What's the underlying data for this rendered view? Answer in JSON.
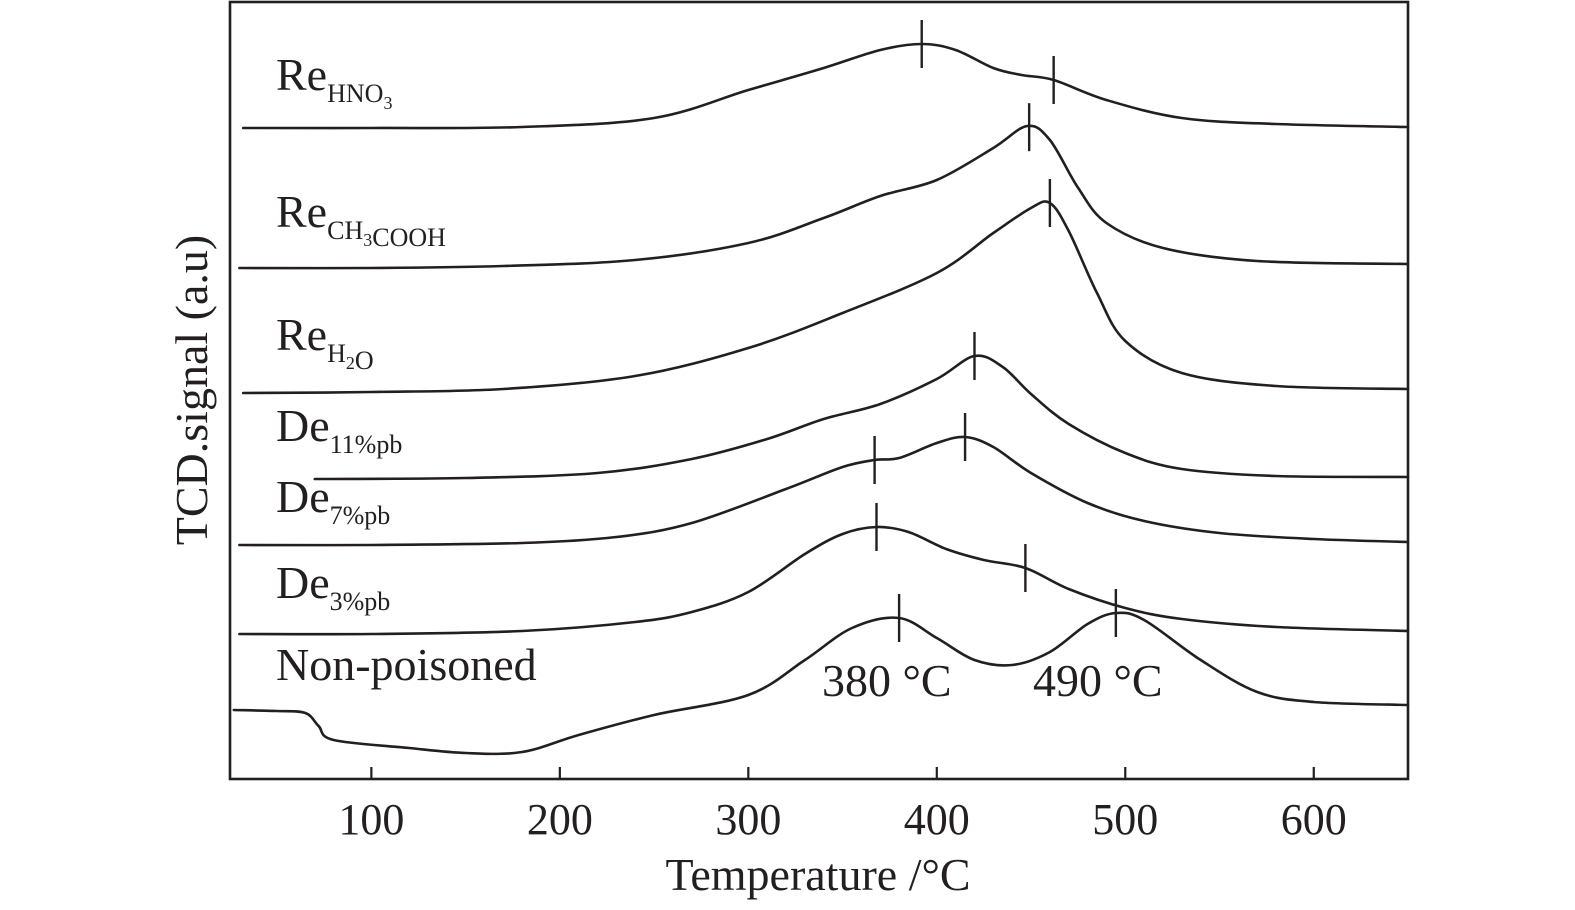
{
  "chart_data": {
    "type": "line",
    "title": "",
    "xlabel": "Temperature /°C",
    "ylabel": "TCD.signal (a.u)",
    "xlim": [
      25,
      650
    ],
    "xticks": [
      100,
      200,
      300,
      400,
      500,
      600
    ],
    "ytick_labels": false,
    "grid": false,
    "legend": "none",
    "stacked_offset": true,
    "series": [
      {
        "name": "Re",
        "subscript": "HNO3",
        "points": [
          [
            32,
            0.02
          ],
          [
            100,
            0.02
          ],
          [
            180,
            0.03
          ],
          [
            250,
            0.12
          ],
          [
            300,
            0.4
          ],
          [
            340,
            0.62
          ],
          [
            370,
            0.8
          ],
          [
            392,
            0.86
          ],
          [
            410,
            0.8
          ],
          [
            430,
            0.62
          ],
          [
            445,
            0.55
          ],
          [
            462,
            0.5
          ],
          [
            490,
            0.3
          ],
          [
            530,
            0.12
          ],
          [
            580,
            0.06
          ],
          [
            650,
            0.03
          ]
        ],
        "peak_markers": [
          392,
          462
        ]
      },
      {
        "name": "Re",
        "subscript": "CH3COOH",
        "points": [
          [
            30,
            0.0
          ],
          [
            100,
            0.0
          ],
          [
            170,
            0.02
          ],
          [
            240,
            0.08
          ],
          [
            300,
            0.25
          ],
          [
            340,
            0.5
          ],
          [
            370,
            0.72
          ],
          [
            400,
            0.88
          ],
          [
            430,
            1.2
          ],
          [
            448,
            1.42
          ],
          [
            460,
            1.28
          ],
          [
            475,
            0.8
          ],
          [
            490,
            0.45
          ],
          [
            520,
            0.2
          ],
          [
            570,
            0.07
          ],
          [
            650,
            0.04
          ]
        ],
        "peak_markers": [
          449
        ]
      },
      {
        "name": "Re",
        "subscript": "H2O",
        "points": [
          [
            32,
            0.0
          ],
          [
            100,
            0.01
          ],
          [
            170,
            0.04
          ],
          [
            240,
            0.17
          ],
          [
            300,
            0.45
          ],
          [
            350,
            0.8
          ],
          [
            400,
            1.2
          ],
          [
            430,
            1.6
          ],
          [
            450,
            1.85
          ],
          [
            460,
            1.9
          ],
          [
            470,
            1.62
          ],
          [
            485,
            1.0
          ],
          [
            500,
            0.52
          ],
          [
            530,
            0.2
          ],
          [
            580,
            0.07
          ],
          [
            650,
            0.04
          ]
        ],
        "peak_markers": [
          460
        ]
      },
      {
        "name": "De",
        "subscript": "11%pb",
        "points": [
          [
            70,
            0.0
          ],
          [
            150,
            0.01
          ],
          [
            220,
            0.06
          ],
          [
            270,
            0.2
          ],
          [
            310,
            0.4
          ],
          [
            340,
            0.6
          ],
          [
            370,
            0.75
          ],
          [
            400,
            1.0
          ],
          [
            420,
            1.23
          ],
          [
            435,
            1.12
          ],
          [
            450,
            0.85
          ],
          [
            470,
            0.55
          ],
          [
            500,
            0.26
          ],
          [
            530,
            0.1
          ],
          [
            580,
            0.03
          ],
          [
            650,
            0.02
          ]
        ],
        "peak_markers": [
          420
        ]
      },
      {
        "name": "De",
        "subscript": "7%pb",
        "points": [
          [
            30,
            0.0
          ],
          [
            100,
            0.0
          ],
          [
            180,
            0.02
          ],
          [
            230,
            0.08
          ],
          [
            270,
            0.22
          ],
          [
            320,
            0.56
          ],
          [
            350,
            0.78
          ],
          [
            367,
            0.85
          ],
          [
            380,
            0.87
          ],
          [
            400,
            1.02
          ],
          [
            415,
            1.08
          ],
          [
            430,
            0.98
          ],
          [
            450,
            0.72
          ],
          [
            480,
            0.42
          ],
          [
            510,
            0.24
          ],
          [
            550,
            0.12
          ],
          [
            600,
            0.06
          ],
          [
            650,
            0.03
          ]
        ],
        "peak_markers": [
          367,
          415
        ]
      },
      {
        "name": "De",
        "subscript": "3%pb",
        "points": [
          [
            30,
            0.0
          ],
          [
            100,
            0.0
          ],
          [
            180,
            0.03
          ],
          [
            240,
            0.12
          ],
          [
            270,
            0.22
          ],
          [
            300,
            0.42
          ],
          [
            330,
            0.8
          ],
          [
            350,
            1.0
          ],
          [
            368,
            1.07
          ],
          [
            385,
            1.02
          ],
          [
            405,
            0.85
          ],
          [
            425,
            0.74
          ],
          [
            447,
            0.66
          ],
          [
            470,
            0.45
          ],
          [
            500,
            0.26
          ],
          [
            530,
            0.15
          ],
          [
            580,
            0.07
          ],
          [
            650,
            0.03
          ]
        ],
        "peak_markers": [
          368,
          447
        ]
      },
      {
        "name": "Non-poisoned",
        "subscript": "",
        "points": [
          [
            27,
            0.0
          ],
          [
            50,
            -0.01
          ],
          [
            65,
            -0.03
          ],
          [
            72,
            -0.16
          ],
          [
            80,
            -0.3
          ],
          [
            120,
            -0.38
          ],
          [
            150,
            -0.43
          ],
          [
            180,
            -0.42
          ],
          [
            210,
            -0.25
          ],
          [
            250,
            -0.05
          ],
          [
            300,
            0.15
          ],
          [
            330,
            0.5
          ],
          [
            355,
            0.82
          ],
          [
            380,
            0.92
          ],
          [
            400,
            0.72
          ],
          [
            420,
            0.5
          ],
          [
            440,
            0.45
          ],
          [
            460,
            0.58
          ],
          [
            480,
            0.86
          ],
          [
            495,
            0.97
          ],
          [
            510,
            0.9
          ],
          [
            540,
            0.5
          ],
          [
            570,
            0.18
          ],
          [
            600,
            0.08
          ],
          [
            650,
            0.05
          ]
        ],
        "peak_markers": [
          380,
          495
        ]
      }
    ],
    "annotations": [
      "380 °C",
      "490 °C"
    ]
  }
}
